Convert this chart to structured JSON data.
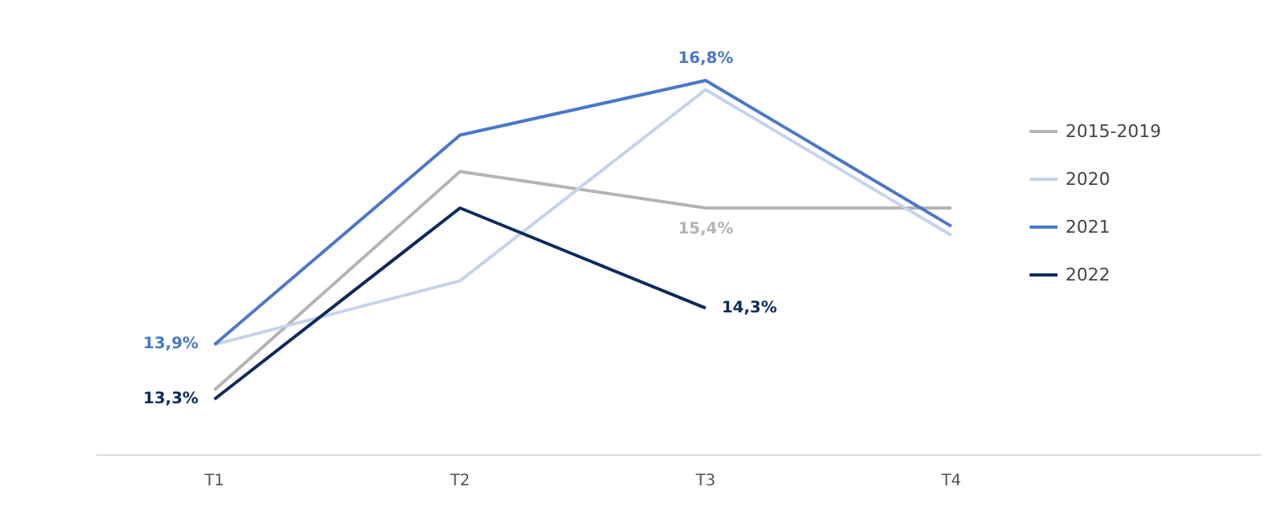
{
  "chart_data": {
    "type": "line",
    "categories": [
      "T1",
      "T2",
      "T3",
      "T4"
    ],
    "grid": false,
    "legend": "right",
    "marker": "none",
    "line_style": "solid",
    "series": [
      {
        "name": "2015-2019",
        "color": "#b4b4b4",
        "values": [
          13.4,
          15.8,
          15.4,
          15.4
        ],
        "value_labels": [
          null,
          null,
          "15,4%",
          null
        ]
      },
      {
        "name": "2020",
        "color": "#c5d3ea",
        "values": [
          13.9,
          14.6,
          16.7,
          15.1
        ],
        "value_labels": [
          null,
          null,
          null,
          null
        ]
      },
      {
        "name": "2021",
        "color": "#4a78c8",
        "values": [
          13.9,
          16.2,
          16.8,
          15.2
        ],
        "value_labels": [
          "13,9%",
          null,
          "16,8%",
          null
        ]
      },
      {
        "name": "2022",
        "color": "#0d2a5e",
        "values": [
          13.3,
          15.4,
          14.3,
          null
        ],
        "value_labels": [
          "13,3%",
          null,
          "14,3%",
          null
        ]
      }
    ]
  }
}
